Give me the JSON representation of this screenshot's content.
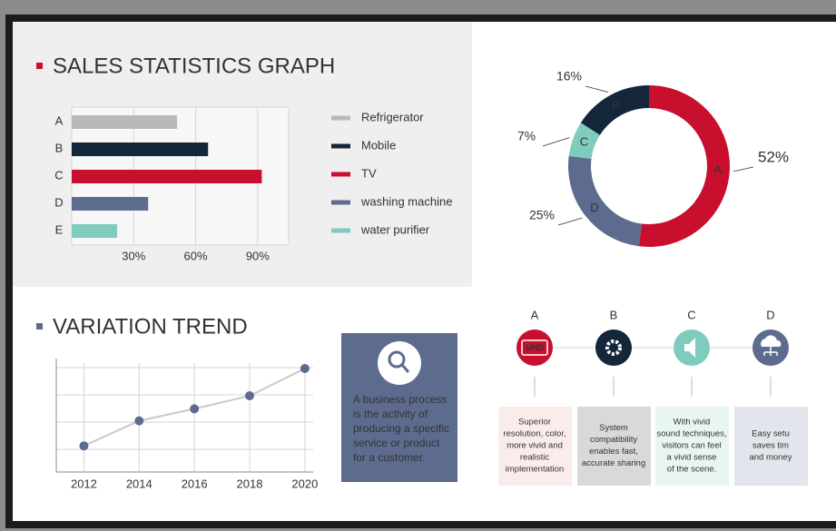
{
  "chart_data": [
    {
      "type": "hbar",
      "title": "SALES STATISTICS GRAPH",
      "categories": [
        "A",
        "B",
        "C",
        "D",
        "E"
      ],
      "values": [
        51,
        66,
        92,
        37,
        22
      ],
      "colors": [
        "#b9b9bb",
        "#14263a",
        "#c8102e",
        "#5d6b8e",
        "#7fcbbd"
      ],
      "legend": [
        "Refrigerator",
        "Mobile",
        "TV",
        "washing machine",
        "water purifier"
      ],
      "xlim": [
        0,
        105
      ],
      "xticks": [
        {
          "value": 30,
          "label": "30%"
        },
        {
          "value": 60,
          "label": "60%"
        },
        {
          "value": 90,
          "label": "90%"
        }
      ],
      "grid": true
    },
    {
      "type": "donut",
      "categories": [
        "A",
        "B",
        "C",
        "D"
      ],
      "values": [
        52,
        16,
        7,
        25
      ],
      "value_labels": [
        "52%",
        "16%",
        "7%",
        "25%"
      ],
      "colors": [
        "#c8102e",
        "#14263a",
        "#7fcbbd",
        "#5d6b8e"
      ]
    },
    {
      "type": "line",
      "title": "VARIATION TREND",
      "x": [
        2012,
        2014,
        2016,
        2018,
        2020
      ],
      "values": [
        24,
        47,
        58,
        70,
        95
      ],
      "xlim": [
        2011,
        2020.3
      ],
      "ylim": [
        0,
        100
      ],
      "xticks": [
        2012,
        2014,
        2016,
        2018,
        2020
      ],
      "color": "#c9c9cc",
      "marker_color": "#5d6b8e",
      "grid": true
    }
  ],
  "info_box": {
    "lines": [
      "A business process",
      "is the activity of",
      "producing a specific",
      "service or product",
      "for a customer."
    ]
  },
  "features": [
    {
      "letter": "A",
      "icon_text": "UHD",
      "lines": [
        "Superior",
        "resolution, color,",
        "more vivid and",
        "realistic",
        "implementation"
      ]
    },
    {
      "letter": "B",
      "lines": [
        "System",
        "compatibility",
        "enables fast,",
        "accurate sharing"
      ]
    },
    {
      "letter": "C",
      "lines": [
        "With vivid",
        "sound techniques,",
        "visitors can feel",
        "a vivid sense",
        "of the scene."
      ]
    },
    {
      "letter": "D",
      "lines": [
        "Easy setu",
        "saves tim",
        "and money"
      ]
    }
  ]
}
